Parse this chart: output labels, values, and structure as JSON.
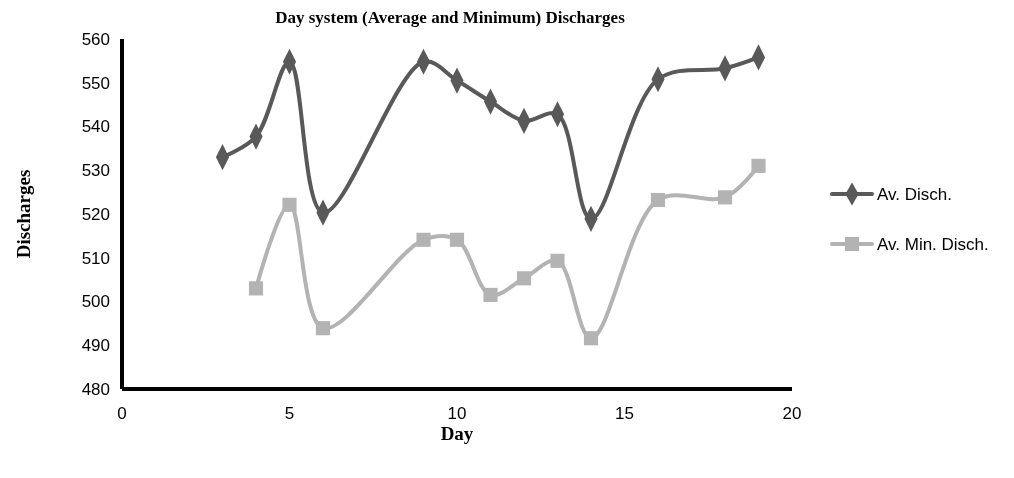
{
  "chart_data": {
    "type": "line",
    "title": "Day system (Average and Minimum) Discharges",
    "xlabel": "Day",
    "ylabel": "Discharges",
    "xlim": [
      0,
      20
    ],
    "xticks": [
      0,
      5,
      10,
      15,
      20
    ],
    "ylim": [
      480,
      560
    ],
    "yticks": [
      480,
      490,
      500,
      510,
      520,
      530,
      540,
      550,
      560
    ],
    "grid": false,
    "legend": "right",
    "line_style": "solid",
    "series": [
      {
        "name": "Av. Disch.",
        "color": "#595959",
        "marker": "diamond",
        "x": [
          3,
          4,
          5,
          6,
          9,
          10,
          11,
          12,
          13,
          14,
          16,
          18,
          19
        ],
        "values": [
          533,
          537.7,
          554.8,
          520.3,
          554.8,
          550.5,
          545.7,
          541.3,
          542.8,
          518.9,
          550.8,
          553.3,
          555.8
        ]
      },
      {
        "name": "Av. Min. Disch.",
        "color": "#b3b3b3",
        "marker": "square",
        "x": [
          4,
          5,
          6,
          9,
          10,
          11,
          12,
          13,
          14,
          16,
          18,
          19
        ],
        "values": [
          503,
          522.1,
          493.9,
          514.1,
          514.1,
          501.5,
          505.3,
          509.3,
          491.6,
          523.2,
          523.8,
          531
        ]
      }
    ]
  }
}
